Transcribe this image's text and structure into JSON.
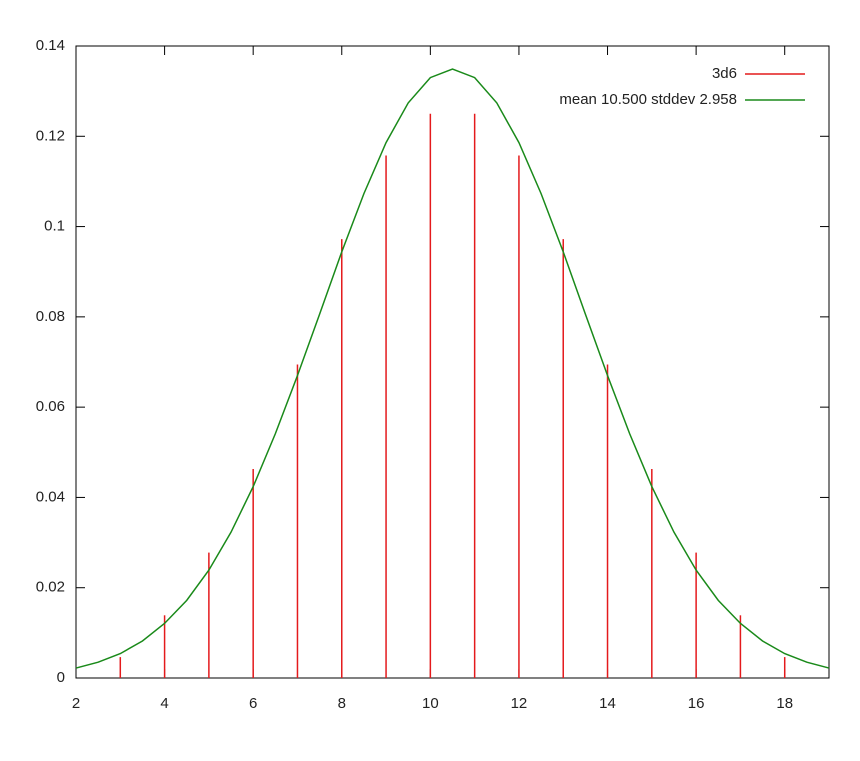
{
  "chart_data": {
    "type": "line",
    "xlim": [
      2,
      19
    ],
    "xticks": [
      2,
      4,
      6,
      8,
      10,
      12,
      14,
      16,
      18
    ],
    "ylim": [
      0,
      0.14
    ],
    "yticks": [
      0,
      0.02,
      0.04,
      0.06,
      0.08,
      0.1,
      0.12,
      0.14
    ],
    "legend": "top-right",
    "series": [
      {
        "name": "3d6",
        "type": "impulse",
        "color": "#e41a1c",
        "x": [
          3,
          4,
          5,
          6,
          7,
          8,
          9,
          10,
          11,
          12,
          13,
          14,
          15,
          16,
          17,
          18
        ],
        "values": [
          0.00463,
          0.01389,
          0.02778,
          0.0463,
          0.06944,
          0.09722,
          0.11574,
          0.125,
          0.125,
          0.11574,
          0.09722,
          0.06944,
          0.0463,
          0.02778,
          0.01389,
          0.00463
        ]
      },
      {
        "name": "mean 10.500 stddev 2.958",
        "type": "line",
        "color": "#1a8a1a",
        "x": [
          2,
          2.5,
          3,
          3.5,
          4,
          4.5,
          5,
          5.5,
          6,
          6.5,
          7,
          7.5,
          8,
          8.5,
          9,
          9.5,
          10,
          10.5,
          11,
          11.5,
          12,
          12.5,
          13,
          13.5,
          14,
          14.5,
          15,
          15.5,
          16,
          16.5,
          17,
          17.5,
          18,
          18.5,
          19
        ],
        "values": [
          0.0022,
          0.0035,
          0.0054,
          0.0082,
          0.0121,
          0.0172,
          0.0239,
          0.0323,
          0.0424,
          0.0541,
          0.067,
          0.0806,
          0.0944,
          0.1073,
          0.1186,
          0.1274,
          0.133,
          0.1349,
          0.133,
          0.1274,
          0.1186,
          0.1073,
          0.0944,
          0.0806,
          0.067,
          0.0541,
          0.0424,
          0.0323,
          0.0239,
          0.0172,
          0.0121,
          0.0082,
          0.0054,
          0.0035,
          0.0022
        ]
      }
    ]
  }
}
